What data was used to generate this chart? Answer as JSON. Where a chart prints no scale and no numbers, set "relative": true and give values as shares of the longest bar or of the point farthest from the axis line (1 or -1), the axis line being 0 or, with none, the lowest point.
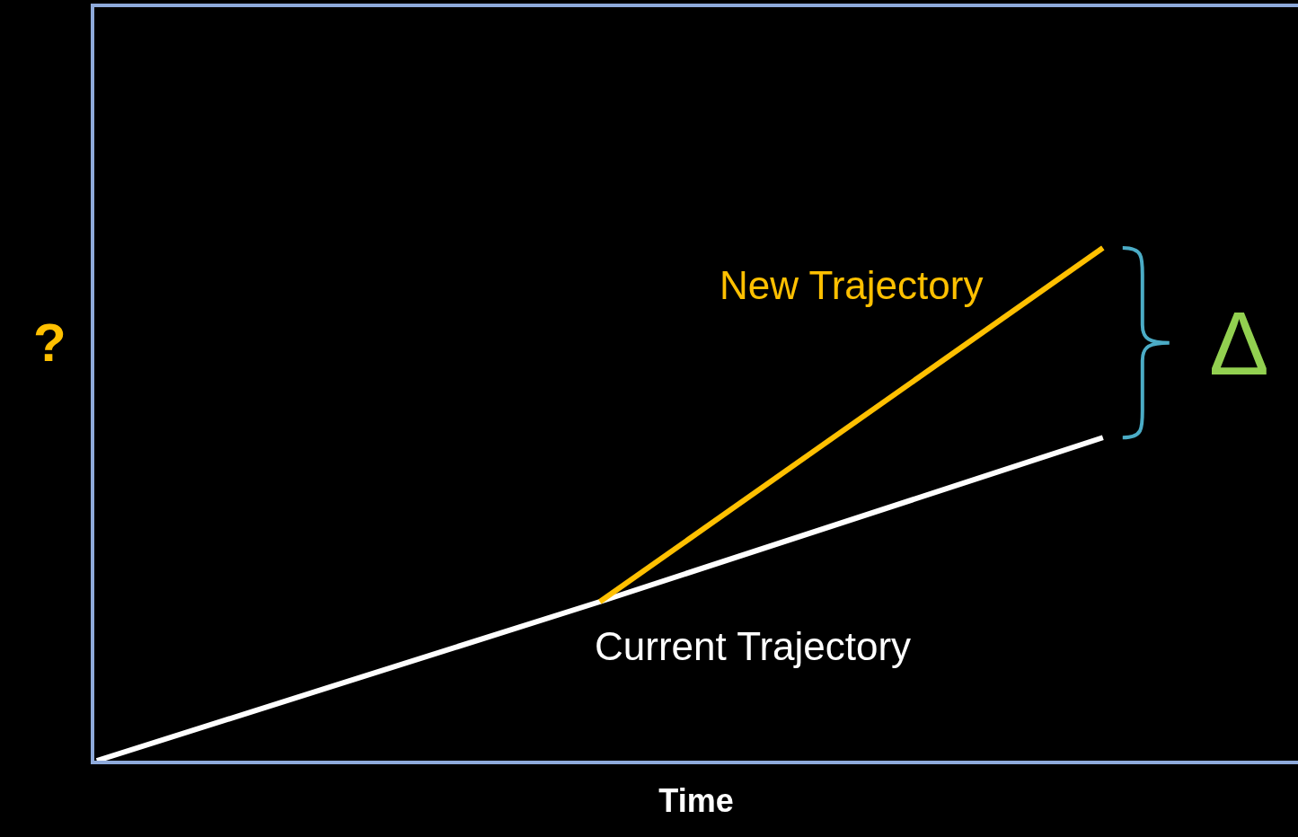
{
  "chart_data": {
    "type": "line",
    "relative": true,
    "xlabel": "Time",
    "ylabel": "?",
    "categories": [
      null,
      null,
      null
    ],
    "series": [
      {
        "name": "Current Trajectory",
        "color": "#ffffff",
        "values": [
          0,
          0.31,
          0.63
        ]
      },
      {
        "name": "New Trajectory",
        "color": "#ffc000",
        "values": [
          null,
          0.31,
          1
        ]
      }
    ],
    "annotations": [
      "Δ"
    ],
    "legend": false,
    "grid": false,
    "marker": "none",
    "line_style": "solid"
  }
}
